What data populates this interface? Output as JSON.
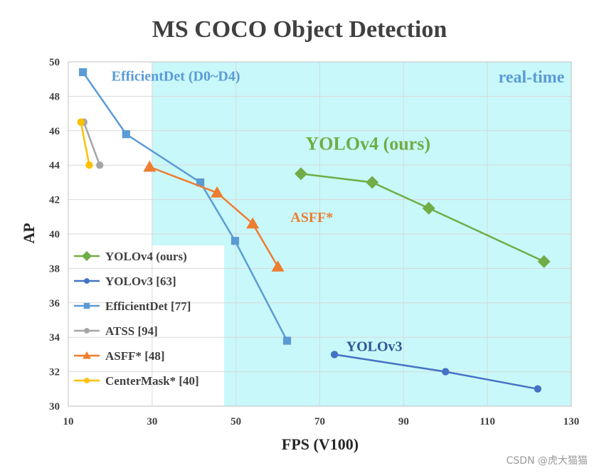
{
  "chart_data": {
    "type": "line",
    "title": "MS COCO Object Detection",
    "xlabel": "FPS (V100)",
    "ylabel": "AP",
    "xlim": [
      10,
      130
    ],
    "ylim": [
      30,
      50
    ],
    "xticks": [
      "10",
      "30",
      "50",
      "70",
      "90",
      "110",
      "130"
    ],
    "yticks": [
      "30",
      "32",
      "34",
      "36",
      "38",
      "40",
      "42",
      "44",
      "46",
      "48",
      "50"
    ],
    "grid": true,
    "realtime_region": {
      "x_from": 30,
      "label": "real-time",
      "color": "#c9f8fa"
    },
    "legend_position": "bottom-left",
    "series": [
      {
        "name": "YOLOv4 (ours)",
        "color": "#70ad47",
        "marker": "diamond",
        "x": [
          65.5,
          82.5,
          96,
          123.5
        ],
        "y": [
          43.5,
          43.0,
          41.5,
          38.4
        ]
      },
      {
        "name": "YOLOv3 [63]",
        "color": "#4472c4",
        "marker": "circle",
        "x": [
          73.5,
          100,
          122
        ],
        "y": [
          33.0,
          32.0,
          31.0
        ]
      },
      {
        "name": "EfficientDet [77]",
        "color": "#5b9bd5",
        "marker": "square",
        "x": [
          13.5,
          23.8,
          41.5,
          49.8,
          62.2
        ],
        "y": [
          49.4,
          45.8,
          43.0,
          39.6,
          33.8
        ]
      },
      {
        "name": "ATSS [94]",
        "color": "#a5a5a5",
        "marker": "circle",
        "x": [
          13.7,
          17.5
        ],
        "y": [
          46.5,
          44.0
        ]
      },
      {
        "name": "ASFF* [48]",
        "color": "#ed7d31",
        "marker": "triangle",
        "x": [
          29.4,
          45.5,
          54,
          60
        ],
        "y": [
          43.9,
          42.4,
          40.6,
          38.1
        ]
      },
      {
        "name": "CenterMask* [40]",
        "color": "#ffc000",
        "marker": "circle",
        "x": [
          13,
          15
        ],
        "y": [
          46.5,
          44.0
        ]
      }
    ],
    "annotations": [
      {
        "text": "EfficientDet (D0~D4)",
        "x": 13.5,
        "y": 48.9,
        "color": "#5b9bd5",
        "size": 20
      },
      {
        "text": "real-time",
        "x": 120.5,
        "y": 48.8,
        "color": "#5b9bd5",
        "size": 24
      },
      {
        "text": "YOLOv4 (ours)",
        "x": 81.5,
        "y": 44.9,
        "color": "#70ad47",
        "size": 26
      },
      {
        "text": "ASFF*",
        "x": 63,
        "y": 40.7,
        "color": "#ed7d31",
        "size": 20
      },
      {
        "text": "YOLOv3",
        "x": 83,
        "y": 33.2,
        "color": "#2f5597",
        "size": 20
      }
    ]
  },
  "watermark": "CSDN @虎大猫猫"
}
